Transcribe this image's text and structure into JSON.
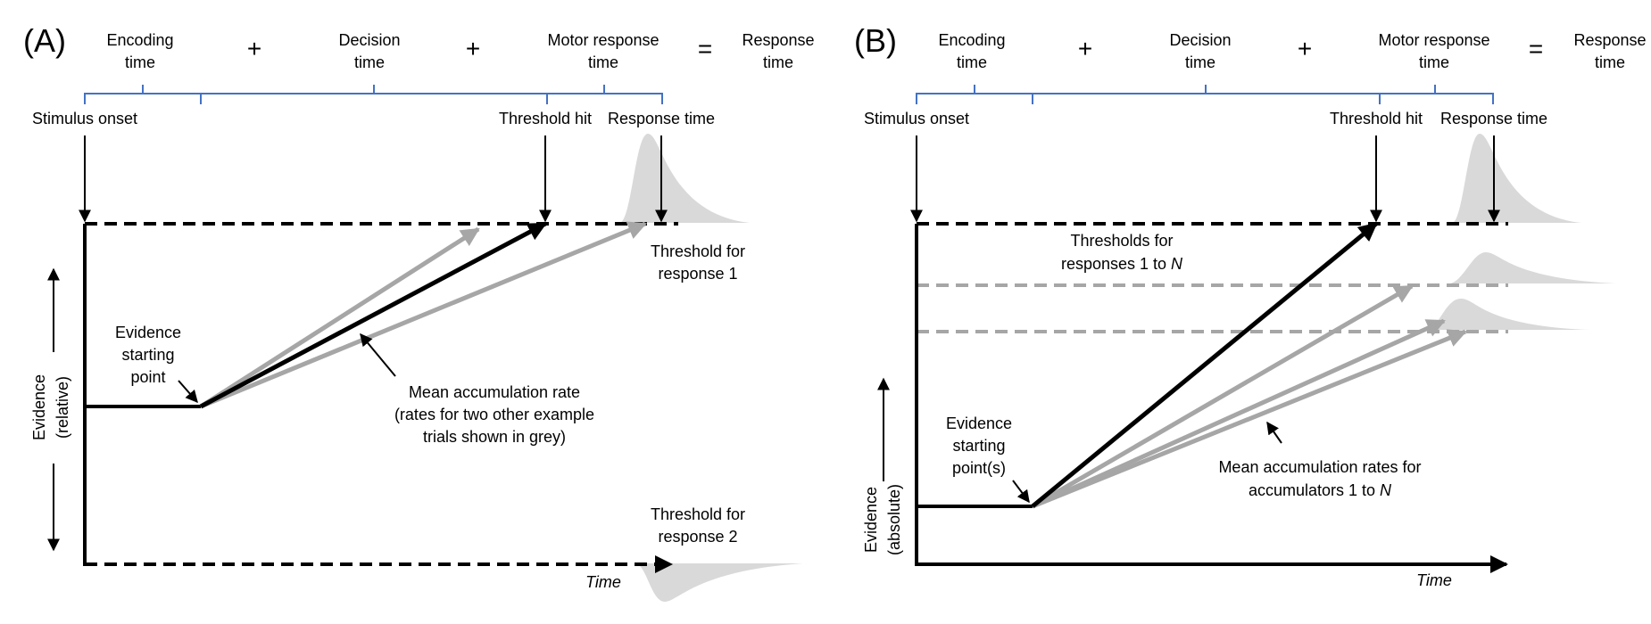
{
  "panels": [
    {
      "id": "A",
      "letter": "(A)",
      "header": {
        "encoding": [
          "Encoding",
          "time"
        ],
        "decision": [
          "Decision",
          "time"
        ],
        "motor": [
          "Motor response",
          "time"
        ],
        "response": [
          "Response",
          "time"
        ],
        "plus": "+",
        "equals": "="
      },
      "events": {
        "stimulus_onset": "Stimulus onset",
        "threshold_hit": "Threshold hit",
        "response_time": "Response time"
      },
      "threshold_1": [
        "Threshold for",
        "response 1"
      ],
      "threshold_2": [
        "Threshold for",
        "response 2"
      ],
      "starting_point": [
        "Evidence",
        "starting",
        "point"
      ],
      "accumulation": [
        "Mean accumulation rate",
        "(rates for two other example",
        "trials shown in grey)"
      ],
      "y_axis": [
        "Evidence",
        "(relative)"
      ],
      "x_axis": "Time"
    },
    {
      "id": "B",
      "letter": "(B)",
      "header": {
        "encoding": [
          "Encoding",
          "time"
        ],
        "decision": [
          "Decision",
          "time"
        ],
        "motor": [
          "Motor response",
          "time"
        ],
        "response": [
          "Response",
          "time"
        ],
        "plus": "+",
        "equals": "="
      },
      "events": {
        "stimulus_onset": "Stimulus onset",
        "threshold_hit": "Threshold hit",
        "response_time": "Response time"
      },
      "thresholds": [
        "Thresholds for",
        "responses 1 to ",
        "N"
      ],
      "starting_point": [
        "Evidence",
        "starting",
        "point(s)"
      ],
      "accumulation": [
        "Mean accumulation rates for",
        "accumulators 1 to ",
        "N"
      ],
      "y_axis": [
        "Evidence",
        "(absolute)"
      ],
      "x_axis": "Time"
    }
  ],
  "colors": {
    "bracket": "#4472c4",
    "ink": "#000000",
    "grey_arrow": "#a6a6a6",
    "grey_dash": "#a6a6a6",
    "distribution": "#d9d9d9"
  }
}
